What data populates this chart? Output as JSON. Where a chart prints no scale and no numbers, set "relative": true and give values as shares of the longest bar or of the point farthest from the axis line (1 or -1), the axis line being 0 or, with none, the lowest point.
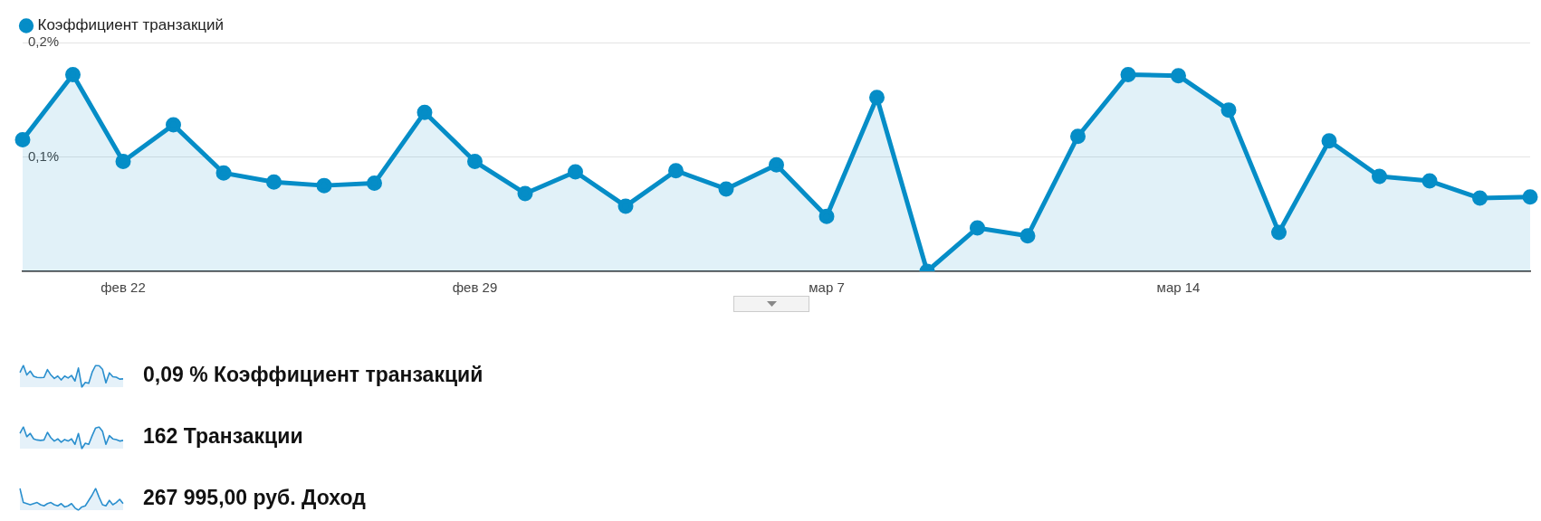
{
  "chart_data": [
    {
      "type": "area",
      "categories": [
        null,
        null,
        "фев 22",
        null,
        null,
        null,
        null,
        null,
        null,
        "фев 29",
        null,
        null,
        null,
        null,
        null,
        null,
        "мар 7",
        null,
        null,
        null,
        null,
        null,
        null,
        "мар 14",
        null,
        null,
        null,
        null,
        null,
        null,
        null
      ],
      "series": [
        {
          "name": "Коэффициент транзакций",
          "color": "#058dc7",
          "values": [
            0.115,
            0.172,
            0.096,
            0.128,
            0.086,
            0.078,
            0.075,
            0.077,
            0.139,
            0.096,
            0.068,
            0.087,
            0.057,
            0.088,
            0.072,
            0.093,
            0.048,
            0.152,
            0.0,
            0.038,
            0.031,
            0.118,
            0.172,
            0.171,
            0.141,
            0.034,
            0.114,
            0.083,
            0.079,
            0.064,
            0.065
          ]
        }
      ],
      "ylim": [
        0,
        0.2
      ],
      "yticks": [
        {
          "value": 0.1,
          "label": "0,1%"
        },
        {
          "value": 0.2,
          "label": "0,2%"
        }
      ],
      "grid": "y",
      "legend": "top left",
      "marker": "circle"
    },
    {
      "type": "area",
      "relative": true,
      "categories": [
        null,
        null,
        null,
        null,
        null,
        null,
        null,
        null,
        null,
        null,
        null,
        null,
        null,
        null,
        null,
        null,
        null,
        null,
        null,
        null,
        null,
        null,
        null,
        null,
        null,
        null,
        null,
        null,
        null,
        null,
        null
      ],
      "series": [
        {
          "name": "0,09 % Коэффициент транзакций",
          "color": "#2a8fce",
          "values": [
            0.67,
            1,
            0.56,
            0.74,
            0.5,
            0.45,
            0.44,
            0.45,
            0.81,
            0.56,
            0.4,
            0.51,
            0.33,
            0.51,
            0.42,
            0.54,
            0.28,
            0.88,
            0,
            0.22,
            0.18,
            0.69,
            1,
            0.99,
            0.82,
            0.2,
            0.66,
            0.48,
            0.46,
            0.37,
            0.38
          ]
        }
      ]
    },
    {
      "type": "area",
      "relative": true,
      "categories": [
        null,
        null,
        null,
        null,
        null,
        null,
        null,
        null,
        null,
        null,
        null,
        null,
        null,
        null,
        null,
        null,
        null,
        null,
        null,
        null,
        null,
        null,
        null,
        null,
        null,
        null,
        null,
        null,
        null,
        null,
        null
      ],
      "series": [
        {
          "name": "162 Транзакции",
          "color": "#2a8fce",
          "values": [
            0.7,
            1,
            0.55,
            0.7,
            0.45,
            0.4,
            0.38,
            0.4,
            0.75,
            0.5,
            0.35,
            0.45,
            0.3,
            0.42,
            0.35,
            0.45,
            0.2,
            0.7,
            0,
            0.25,
            0.2,
            0.6,
            0.95,
            1,
            0.8,
            0.2,
            0.6,
            0.45,
            0.42,
            0.35,
            0.38
          ]
        }
      ]
    },
    {
      "type": "area",
      "relative": true,
      "categories": [
        null,
        null,
        null,
        null,
        null,
        null,
        null,
        null,
        null,
        null,
        null,
        null,
        null,
        null,
        null,
        null,
        null,
        null,
        null,
        null,
        null,
        null,
        null,
        null,
        null,
        null,
        null,
        null,
        null,
        null,
        null
      ],
      "series": [
        {
          "name": "267 995,00 руб. Доход",
          "color": "#2a8fce",
          "values": [
            1,
            0.35,
            0.3,
            0.25,
            0.3,
            0.35,
            0.25,
            0.2,
            0.3,
            0.35,
            0.25,
            0.2,
            0.3,
            0.15,
            0.2,
            0.3,
            0.1,
            0,
            0.15,
            0.2,
            0.45,
            0.7,
            1,
            0.6,
            0.25,
            0.2,
            0.45,
            0.25,
            0.35,
            0.5,
            0.3
          ]
        }
      ]
    }
  ]
}
